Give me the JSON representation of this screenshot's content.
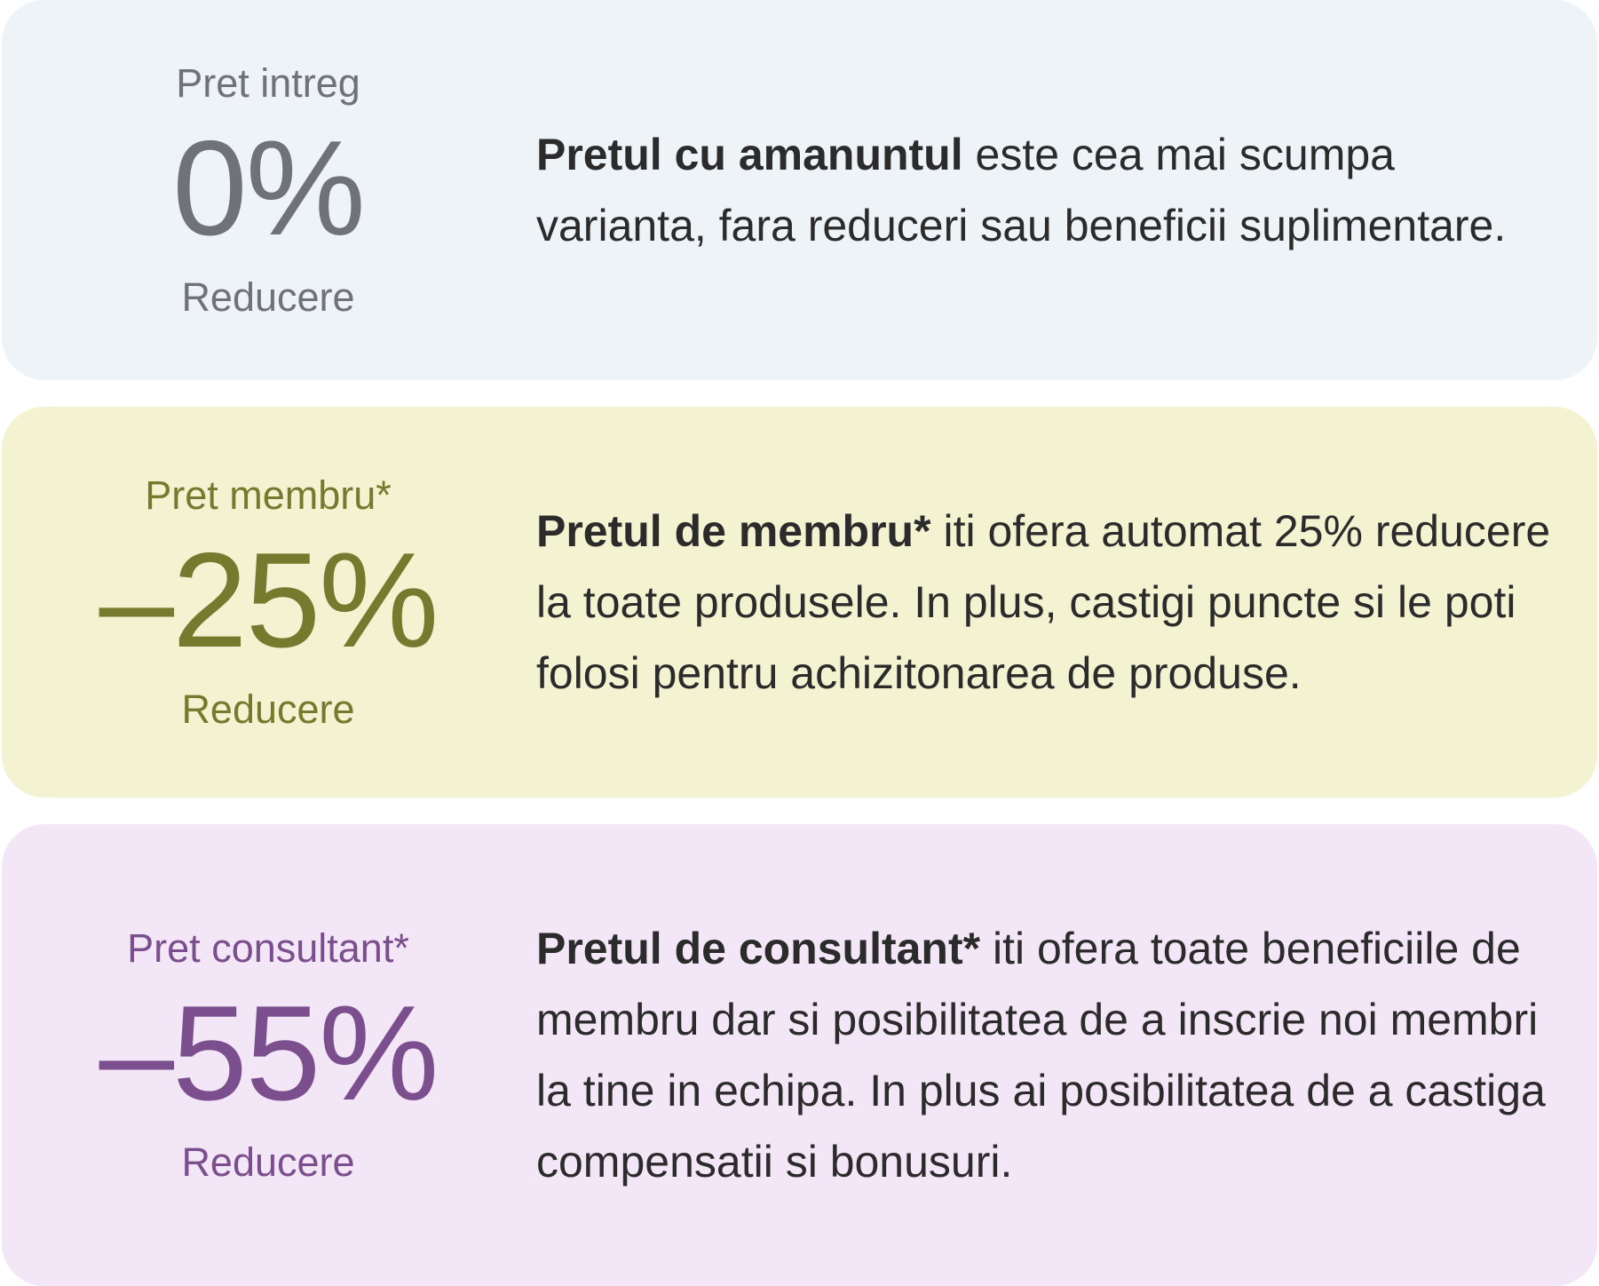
{
  "cards": [
    {
      "label": "Pret intreg",
      "value": "0%",
      "sub": "Reducere",
      "desc_bold": "Pretul cu amanuntul",
      "desc_rest": " este cea mai scumpa varianta, fara reduceri sau beneficii suplimentare.",
      "color": "#6f7276",
      "background": "#eef3f8"
    },
    {
      "label": "Pret membru*",
      "value": "–25%",
      "sub": "Reducere",
      "desc_bold": "Pretul de membru*",
      "desc_rest": " iti ofera automat 25% reducere la toate produsele. In plus, castigi puncte si le poti folosi pentru achizitonarea de produse.",
      "color": "#757a2e",
      "background": "#f3f3d2"
    },
    {
      "label": "Pret consultant*",
      "value": "–55%",
      "sub": "Reducere",
      "desc_bold": "Pretul de consultant*",
      "desc_rest": " iti ofera toate beneficiile de membru dar si posibilitatea de a inscrie noi membri la tine in echipa. In plus ai posibilitatea de a castiga compensatii si bonusuri.",
      "color": "#7b4f8e",
      "background": "#f3e6f6"
    }
  ]
}
